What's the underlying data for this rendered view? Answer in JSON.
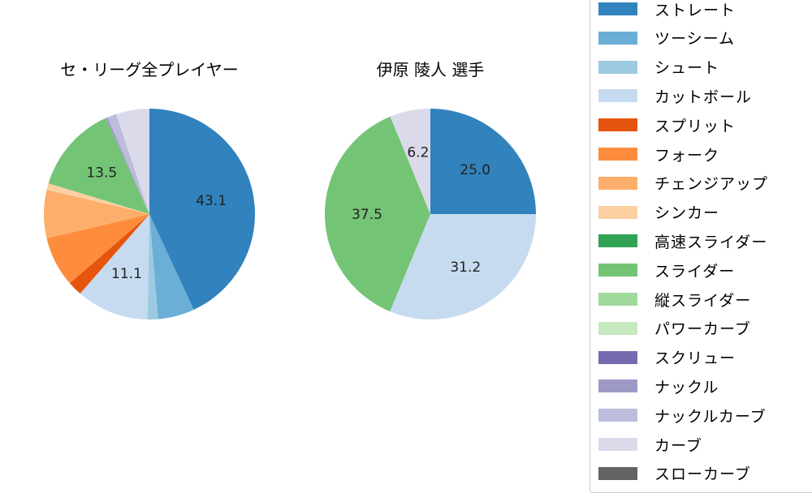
{
  "chart_data": [
    {
      "type": "pie",
      "title": "セ・リーグ全プレイヤー",
      "start_angle": 90,
      "direction": "clockwise",
      "categories": [
        "ストレート",
        "ツーシーム",
        "シュート",
        "カットボール",
        "スプリット",
        "フォーク",
        "チェンジアップ",
        "シンカー",
        "スライダー",
        "ナックル",
        "ナックルカーブ",
        "カーブ"
      ],
      "values": [
        43.1,
        5.6,
        1.6,
        11.1,
        2.2,
        7.7,
        7.4,
        1.0,
        13.5,
        0.3,
        1.4,
        5.1
      ],
      "labels_shown": {
        "ストレート": "43.1",
        "カットボール": "11.1",
        "スライダー": "13.5"
      }
    },
    {
      "type": "pie",
      "title": "伊原 陵人  選手",
      "start_angle": 90,
      "direction": "clockwise",
      "categories": [
        "ストレート",
        "カットボール",
        "スライダー",
        "カーブ"
      ],
      "values": [
        25.0,
        31.2,
        37.5,
        6.2
      ],
      "labels_shown": {
        "ストレート": "25.0",
        "カットボール": "31.2",
        "スライダー": "37.5",
        "カーブ": "6.2"
      }
    }
  ],
  "legend": {
    "position": "right",
    "items": [
      {
        "label": "ストレート",
        "color": "#3182bd"
      },
      {
        "label": "ツーシーム",
        "color": "#6baed6"
      },
      {
        "label": "シュート",
        "color": "#9ecae1"
      },
      {
        "label": "カットボール",
        "color": "#c6dbef"
      },
      {
        "label": "スプリット",
        "color": "#e6550d"
      },
      {
        "label": "フォーク",
        "color": "#fd8d3c"
      },
      {
        "label": "チェンジアップ",
        "color": "#fdae6b"
      },
      {
        "label": "シンカー",
        "color": "#fdd0a2"
      },
      {
        "label": "高速スライダー",
        "color": "#31a354"
      },
      {
        "label": "スライダー",
        "color": "#74c476"
      },
      {
        "label": "縦スライダー",
        "color": "#a1d99b"
      },
      {
        "label": "パワーカーブ",
        "color": "#c7e9c0"
      },
      {
        "label": "スクリュー",
        "color": "#756bb1"
      },
      {
        "label": "ナックル",
        "color": "#9e9ac8"
      },
      {
        "label": "ナックルカーブ",
        "color": "#bcbddc"
      },
      {
        "label": "カーブ",
        "color": "#dadaeb"
      },
      {
        "label": "スローカーブ",
        "color": "#636363"
      }
    ]
  },
  "titles": {
    "left": "セ・リーグ全プレイヤー",
    "right": "伊原 陵人  選手"
  }
}
